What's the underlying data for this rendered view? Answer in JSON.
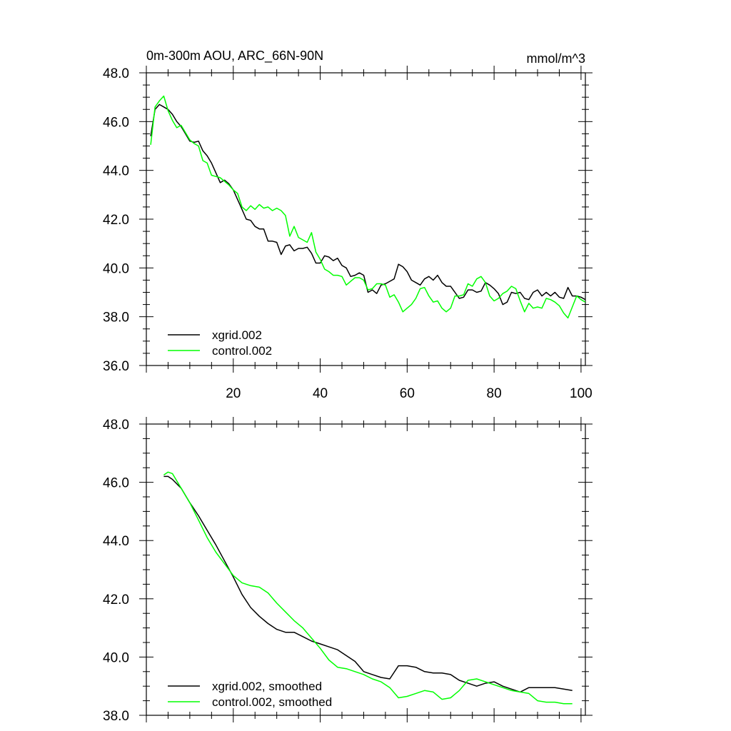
{
  "chart_data": [
    {
      "type": "line",
      "title": "0m-300m AOU, ARC_66N-90N",
      "units": "mmol/m^3",
      "xlabel": "",
      "ylabel": "",
      "xlim": [
        0,
        101
      ],
      "ylim": [
        36,
        48
      ],
      "xticks": [
        20,
        40,
        60,
        80,
        100
      ],
      "xtick_labels": [
        "20",
        "40",
        "60",
        "80",
        "100"
      ],
      "yticks": [
        36,
        38,
        40,
        42,
        44,
        46,
        48
      ],
      "ytick_labels": [
        "36.0",
        "38.0",
        "40.0",
        "42.0",
        "44.0",
        "46.0",
        "48.0"
      ],
      "legend_position": "bottom-left",
      "series": [
        {
          "name": "xgrid.002",
          "color": "#000000",
          "x": [
            1,
            2,
            3,
            4,
            5,
            6,
            7,
            8,
            9,
            10,
            11,
            12,
            13,
            14,
            15,
            16,
            17,
            18,
            19,
            20,
            21,
            22,
            23,
            24,
            25,
            26,
            27,
            28,
            29,
            30,
            31,
            32,
            33,
            34,
            35,
            36,
            37,
            38,
            39,
            40,
            41,
            42,
            43,
            44,
            45,
            46,
            47,
            48,
            49,
            50,
            51,
            52,
            53,
            54,
            55,
            56,
            57,
            58,
            59,
            60,
            61,
            62,
            63,
            64,
            65,
            66,
            67,
            68,
            69,
            70,
            71,
            72,
            73,
            74,
            75,
            76,
            77,
            78,
            79,
            80,
            81,
            82,
            83,
            84,
            85,
            86,
            87,
            88,
            89,
            90,
            91,
            92,
            93,
            94,
            95,
            96,
            97,
            98,
            99,
            100,
            101
          ],
          "values": [
            45.4,
            46.5,
            46.7,
            46.6,
            46.5,
            46.3,
            46.0,
            45.8,
            45.5,
            45.2,
            45.15,
            45.2,
            44.8,
            44.6,
            44.3,
            43.9,
            43.5,
            43.6,
            43.45,
            43.2,
            42.8,
            42.4,
            42.0,
            41.95,
            41.7,
            41.6,
            41.6,
            41.1,
            41.1,
            41.05,
            40.55,
            40.9,
            40.95,
            40.7,
            40.8,
            40.8,
            40.85,
            40.6,
            40.2,
            40.2,
            40.5,
            40.45,
            40.3,
            40.4,
            40.1,
            40.0,
            39.65,
            39.7,
            39.8,
            39.7,
            39.0,
            39.1,
            38.95,
            39.3,
            39.35,
            39.45,
            39.55,
            40.15,
            40.05,
            39.85,
            39.5,
            39.4,
            39.3,
            39.55,
            39.65,
            39.5,
            39.7,
            39.4,
            39.25,
            39.25,
            39.0,
            38.75,
            38.8,
            39.1,
            39.1,
            39.0,
            39.05,
            39.4,
            39.3,
            39.15,
            38.95,
            38.5,
            38.6,
            39.0,
            38.95,
            39.0,
            38.75,
            38.7,
            39.0,
            39.1,
            38.85,
            39.0,
            38.85,
            39.0,
            38.8,
            38.75,
            39.2,
            38.85,
            38.85,
            38.8,
            38.7
          ]
        },
        {
          "name": "control.002",
          "color": "#00ff00",
          "x": [
            1,
            2,
            3,
            4,
            5,
            6,
            7,
            8,
            9,
            10,
            11,
            12,
            13,
            14,
            15,
            16,
            17,
            18,
            19,
            20,
            21,
            22,
            23,
            24,
            25,
            26,
            27,
            28,
            29,
            30,
            31,
            32,
            33,
            34,
            35,
            36,
            37,
            38,
            39,
            40,
            41,
            42,
            43,
            44,
            45,
            46,
            47,
            48,
            49,
            50,
            51,
            52,
            53,
            54,
            55,
            56,
            57,
            58,
            59,
            60,
            61,
            62,
            63,
            64,
            65,
            66,
            67,
            68,
            69,
            70,
            71,
            72,
            73,
            74,
            75,
            76,
            77,
            78,
            79,
            80,
            81,
            82,
            83,
            84,
            85,
            86,
            87,
            88,
            89,
            90,
            91,
            92,
            93,
            94,
            95,
            96,
            97,
            98,
            99,
            100,
            101
          ],
          "values": [
            45.05,
            46.6,
            46.85,
            47.05,
            46.45,
            46.05,
            45.75,
            45.85,
            45.55,
            45.25,
            45.1,
            45.0,
            44.4,
            44.3,
            43.8,
            43.75,
            43.7,
            43.55,
            43.4,
            43.2,
            43.05,
            42.5,
            42.35,
            42.55,
            42.4,
            42.6,
            42.45,
            42.5,
            42.35,
            42.45,
            42.35,
            42.15,
            41.3,
            41.7,
            41.25,
            41.15,
            41.05,
            41.45,
            40.65,
            40.35,
            39.95,
            39.85,
            39.7,
            39.7,
            39.65,
            39.3,
            39.45,
            39.6,
            39.6,
            39.5,
            39.1,
            39.15,
            39.35,
            39.35,
            39.3,
            38.8,
            38.9,
            38.6,
            38.2,
            38.35,
            38.5,
            38.75,
            39.15,
            39.2,
            38.85,
            38.6,
            38.65,
            38.35,
            38.2,
            38.35,
            38.85,
            38.85,
            38.9,
            39.35,
            39.25,
            39.55,
            39.65,
            39.4,
            38.85,
            38.65,
            38.75,
            38.95,
            39.05,
            39.25,
            39.15,
            38.65,
            38.2,
            38.55,
            38.35,
            38.4,
            38.35,
            38.75,
            38.7,
            38.6,
            38.45,
            38.15,
            37.95,
            38.4,
            38.85,
            38.7,
            38.6
          ]
        }
      ]
    },
    {
      "type": "line",
      "title": "",
      "xlabel": "",
      "ylabel": "",
      "xlim": [
        0,
        101
      ],
      "ylim": [
        38,
        48
      ],
      "xticks": [
        20,
        40,
        60,
        80,
        100
      ],
      "xtick_labels": [],
      "yticks": [
        38,
        40,
        42,
        44,
        46,
        48
      ],
      "ytick_labels": [
        "38.0",
        "40.0",
        "42.0",
        "44.0",
        "46.0",
        "48.0"
      ],
      "legend_position": "bottom-left",
      "series": [
        {
          "name": "xgrid.002, smoothed",
          "color": "#000000",
          "x": [
            4,
            5,
            6,
            8,
            10,
            12,
            14,
            16,
            18,
            20,
            22,
            24,
            26,
            28,
            30,
            32,
            34,
            36,
            38,
            40,
            42,
            44,
            46,
            48,
            50,
            52,
            54,
            56,
            58,
            60,
            62,
            64,
            66,
            68,
            70,
            72,
            74,
            76,
            78,
            80,
            82,
            84,
            86,
            88,
            90,
            92,
            94,
            96,
            98
          ],
          "values": [
            46.2,
            46.2,
            46.1,
            45.8,
            45.3,
            44.85,
            44.35,
            43.85,
            43.3,
            42.75,
            42.15,
            41.7,
            41.4,
            41.15,
            40.95,
            40.85,
            40.85,
            40.7,
            40.55,
            40.45,
            40.35,
            40.25,
            40.05,
            39.85,
            39.5,
            39.4,
            39.3,
            39.25,
            39.7,
            39.7,
            39.65,
            39.5,
            39.45,
            39.45,
            39.4,
            39.2,
            39.1,
            39.0,
            39.1,
            39.15,
            39.0,
            38.9,
            38.8,
            38.95,
            38.95,
            38.95,
            38.95,
            38.9,
            38.85
          ]
        },
        {
          "name": "control.002, smoothed",
          "color": "#00ff00",
          "x": [
            4,
            5,
            6,
            8,
            10,
            12,
            14,
            16,
            18,
            20,
            22,
            24,
            26,
            28,
            30,
            32,
            34,
            36,
            38,
            40,
            42,
            44,
            46,
            48,
            50,
            52,
            54,
            56,
            58,
            60,
            62,
            64,
            66,
            68,
            70,
            72,
            74,
            76,
            78,
            80,
            82,
            84,
            86,
            88,
            90,
            92,
            94,
            96,
            98
          ],
          "values": [
            46.25,
            46.35,
            46.3,
            45.8,
            45.3,
            44.7,
            44.1,
            43.6,
            43.2,
            42.8,
            42.55,
            42.45,
            42.4,
            42.2,
            41.85,
            41.55,
            41.25,
            41.0,
            40.65,
            40.3,
            39.9,
            39.65,
            39.6,
            39.5,
            39.4,
            39.25,
            39.15,
            38.95,
            38.6,
            38.65,
            38.75,
            38.85,
            38.8,
            38.55,
            38.6,
            38.85,
            39.2,
            39.25,
            39.15,
            39.05,
            38.95,
            38.85,
            38.8,
            38.75,
            38.5,
            38.45,
            38.45,
            38.4,
            38.4
          ]
        }
      ]
    }
  ]
}
